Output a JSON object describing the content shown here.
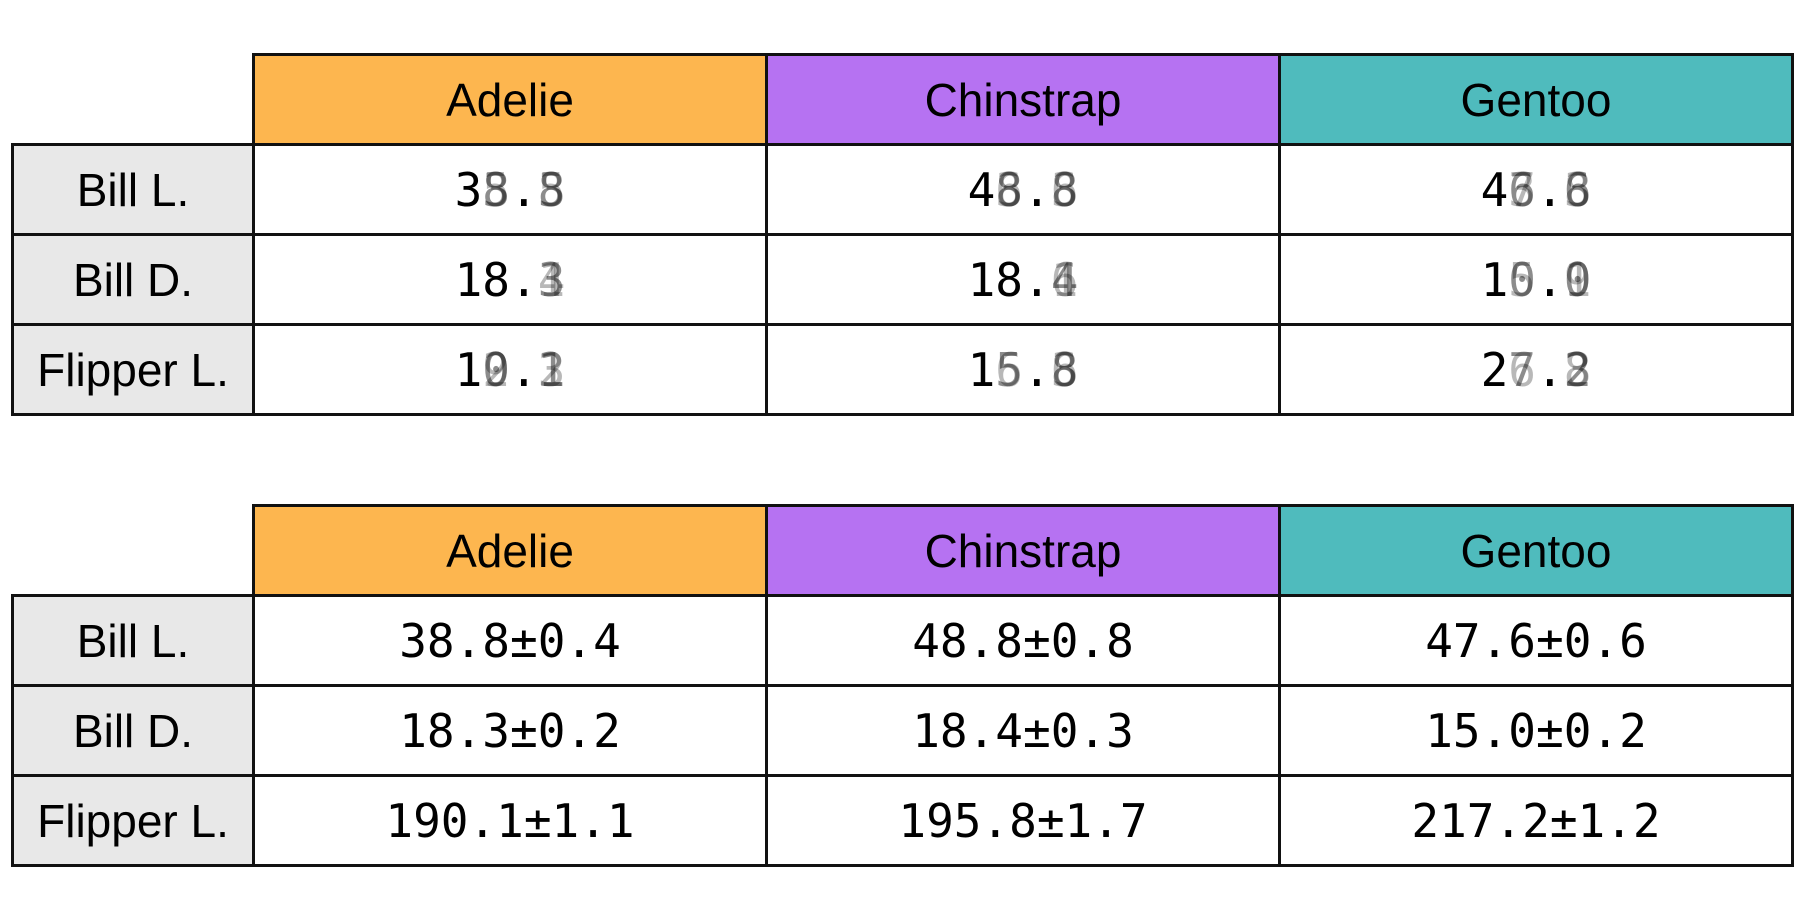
{
  "chart_data": [
    {
      "type": "table",
      "columns": [
        "Adelie",
        "Chinstrap",
        "Gentoo"
      ],
      "column_colors": [
        "#fdb64f",
        "#b672f2",
        "#4fbbbd"
      ],
      "rows": [
        {
          "label": "Bill L.",
          "cells": [
            {
              "stable": "38",
              "sep": ".",
              "ghosts": [
                "8",
                "5",
                "3"
              ],
              "frac_ghosts": [
                "8",
                "3",
                "5"
              ]
            },
            {
              "stable": "48",
              "sep": ".",
              "ghosts": [
                "8",
                "6",
                "3"
              ],
              "frac_ghosts": [
                "8",
                "3",
                "6"
              ]
            },
            {
              "stable": "47",
              "sep": ".",
              "ghosts": [
                "6",
                "7",
                "3"
              ],
              "frac_ghosts": [
                "6",
                "8",
                "3"
              ]
            }
          ]
        },
        {
          "label": "Bill D.",
          "cells": [
            {
              "stable": "18",
              "sep": ".",
              "ghosts": [],
              "frac_ghosts": [
                "3",
                "4",
                "1"
              ]
            },
            {
              "stable": "18",
              "sep": ".",
              "ghosts": [],
              "frac_ghosts": [
                "4",
                "6",
                "1"
              ]
            },
            {
              "stable": "15",
              "sep": ".",
              "ghosts": [
                "0",
                "5"
              ],
              "frac_ghosts": [
                "0",
                "9",
                "1"
              ]
            }
          ]
        },
        {
          "label": "Flipper L.",
          "cells": [
            {
              "stable": "19",
              "sep": ".",
              "ghosts": [
                "0",
                "9",
                "2"
              ],
              "frac_ghosts": [
                "1",
                "3",
                "2"
              ]
            },
            {
              "stable": "19",
              "sep": ".",
              "ghosts": [
                "5",
                "6"
              ],
              "frac_ghosts": [
                "8",
                "3",
                "6"
              ]
            },
            {
              "stable": "21",
              "sep": ".",
              "ghosts": [
                "7",
                "6"
              ],
              "frac_ghosts": [
                "2",
                "8",
                "3"
              ]
            }
          ]
        }
      ]
    },
    {
      "type": "table",
      "columns": [
        "Adelie",
        "Chinstrap",
        "Gentoo"
      ],
      "column_colors": [
        "#fdb64f",
        "#b672f2",
        "#4fbbbd"
      ],
      "rows": [
        {
          "label": "Bill L.",
          "values": [
            "38.8±0.4",
            "48.8±0.8",
            "47.6±0.6"
          ]
        },
        {
          "label": "Bill D.",
          "values": [
            "18.3±0.2",
            "18.4±0.3",
            "15.0±0.2"
          ]
        },
        {
          "label": "Flipper L.",
          "values": [
            "190.1±1.1",
            "195.8±1.7",
            "217.2±1.2"
          ]
        }
      ]
    }
  ]
}
